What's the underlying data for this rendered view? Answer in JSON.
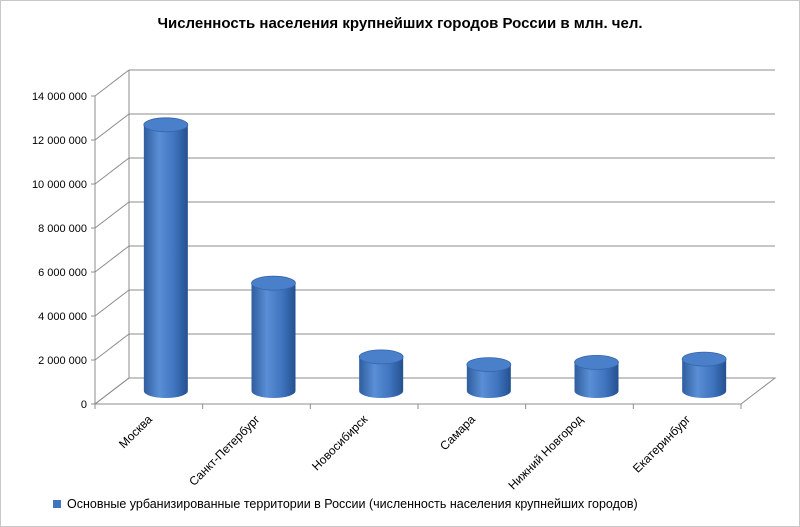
{
  "chart_data": {
    "type": "bar",
    "title": "Численность населения крупнейших городов России в млн. чел.",
    "categories": [
      "Москва",
      "Санкт-Петербург",
      "Новосибирск",
      "Самара",
      "Нижний Новгород",
      "Екатеринбург"
    ],
    "series": [
      {
        "name": "Основные урбанизированные территории в России (численность населения крупнейших городов)",
        "values": [
          12100000,
          4900000,
          1550000,
          1200000,
          1300000,
          1450000
        ],
        "color": "#3f74be"
      }
    ],
    "y_ticks": [
      "0",
      "2 000 000",
      "4 000 000",
      "6 000 000",
      "8 000 000",
      "10 000 000",
      "12 000 000",
      "14 000 000"
    ],
    "ylim": [
      0,
      14000000
    ],
    "grid": true,
    "legend_position": "bottom-left",
    "style": "3d-cylinder"
  }
}
